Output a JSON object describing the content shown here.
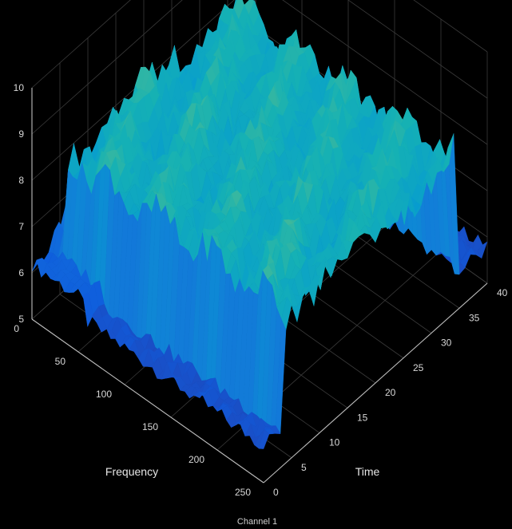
{
  "chart_data": {
    "type": "surface3d",
    "caption": "Channel 1",
    "xlabel": "Frequency",
    "ylabel": "Time",
    "zlabel": "",
    "xlim": [
      0,
      250
    ],
    "ylim": [
      0,
      40
    ],
    "zlim": [
      5,
      10
    ],
    "x_ticks": [
      "0",
      "50",
      "100",
      "150",
      "200",
      "250"
    ],
    "y_ticks": [
      "0",
      "5",
      "10",
      "15",
      "20",
      "25",
      "30",
      "35",
      "40"
    ],
    "z_ticks": [
      "5",
      "6",
      "7",
      "8",
      "9",
      "10"
    ],
    "grid": true,
    "colormap": "parula",
    "background": "#000000",
    "surface_profile": {
      "description_x": "frequency bins",
      "x": [
        0,
        10,
        20,
        30,
        40,
        50,
        60,
        70,
        80,
        90,
        100,
        110,
        120,
        130,
        140,
        150,
        160,
        170,
        180,
        190,
        200,
        210,
        220,
        230,
        240,
        250
      ],
      "active_time_range": [
        4,
        34
      ],
      "baseline_time_range": [
        0,
        40
      ],
      "ridge_level": 8.3,
      "baseline_level": 5.8,
      "edge_level": 6.6
    }
  }
}
